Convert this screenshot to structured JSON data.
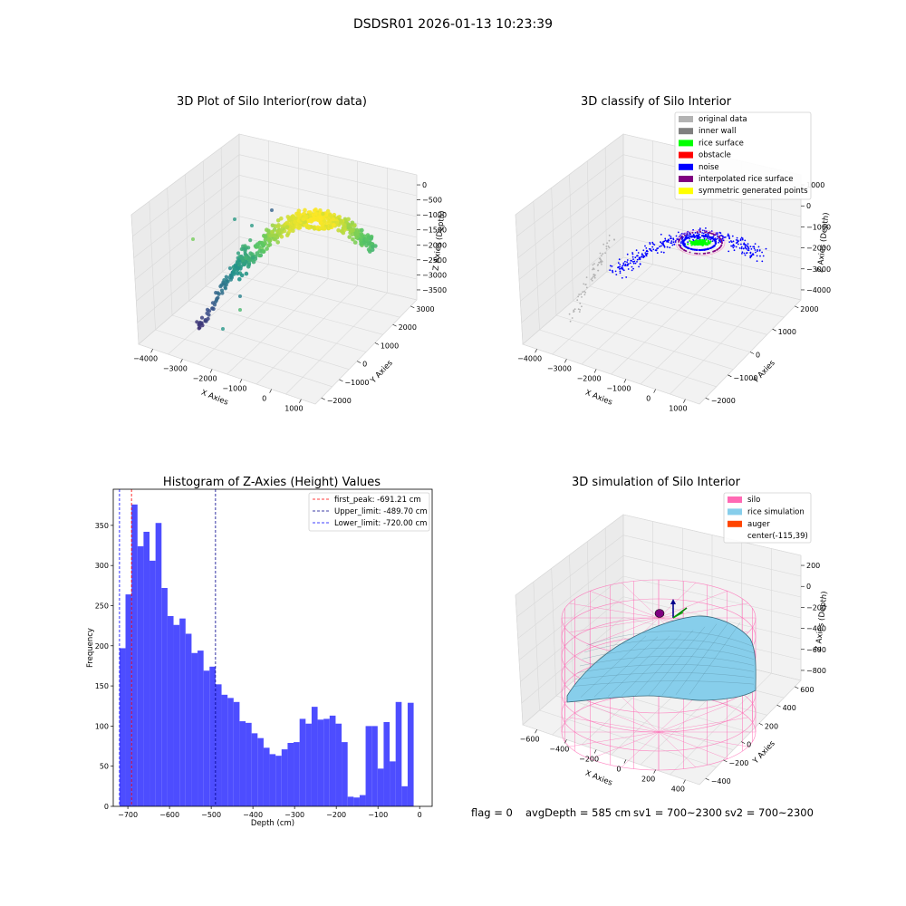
{
  "suptitle": "DSDSR01 2026-01-13 10:23:39",
  "status": {
    "flag": "flag = 0",
    "avg_depth": "avgDepth = 585 cm",
    "sv1": "sv1 = 700~2300",
    "sv2": "sv2 = 700~2300"
  },
  "chart_data": [
    {
      "type": "scatter",
      "projection": "3d",
      "title": "3D Plot of Silo Interior(row data)",
      "xlabel": "X Axies",
      "ylabel": "Y Axies",
      "zlabel": "Z Axies (Depth)",
      "x_ticks": [
        "−4000",
        "−3000",
        "−2000",
        "−1000",
        "0",
        "1000"
      ],
      "y_ticks": [
        "−2000",
        "−1000",
        "0",
        "1000",
        "2000",
        "3000"
      ],
      "z_ticks": [
        "0",
        "−500",
        "−1000",
        "−1500",
        "−2000",
        "−2500",
        "−3000",
        "−3500"
      ],
      "colormap": "viridis",
      "grid": true
    },
    {
      "type": "scatter",
      "projection": "3d",
      "title": "3D classify of Silo Interior",
      "xlabel": "X Axies",
      "ylabel": "Y Axies",
      "zlabel": "Z Axies (Depth)",
      "x_ticks": [
        "−4000",
        "−3000",
        "−2000",
        "−1000",
        "0",
        "1000"
      ],
      "y_ticks": [
        "−2000",
        "−1000",
        "0",
        "1000",
        "2000"
      ],
      "z_ticks": [
        "1000",
        "0",
        "−1000",
        "−2000",
        "−3000",
        "−4000"
      ],
      "legend_placement": "top-right",
      "legend": [
        {
          "label": "original data",
          "color": "#b3b3b3"
        },
        {
          "label": "inner wall",
          "color": "#808080"
        },
        {
          "label": "rice surface",
          "color": "#00ff00"
        },
        {
          "label": "obstacle",
          "color": "#ff0000"
        },
        {
          "label": "noise",
          "color": "#0000ff"
        },
        {
          "label": "interpolated rice surface",
          "color": "#800080"
        },
        {
          "label": "symmetric generated points",
          "color": "#ffff00"
        }
      ],
      "grid": true
    },
    {
      "type": "bar",
      "title": "Histogram of Z-Axies (Height) Values",
      "xlabel": "Depth (cm)",
      "ylabel": "Frequency",
      "xlim": [
        -735,
        30
      ],
      "ylim": [
        0,
        395
      ],
      "x_ticks": [
        -700,
        -600,
        -500,
        -400,
        -300,
        -200,
        -100,
        0
      ],
      "x_tick_labels": [
        "−700",
        "−600",
        "−500",
        "−400",
        "−300",
        "−200",
        "−100",
        "0"
      ],
      "y_ticks": [
        0,
        50,
        100,
        150,
        200,
        250,
        300,
        350
      ],
      "bin_start": -720,
      "bin_width": 14.4,
      "values": [
        197,
        264,
        376,
        324,
        342,
        306,
        353,
        272,
        237,
        226,
        234,
        215,
        191,
        194,
        169,
        174,
        152,
        139,
        135,
        130,
        106,
        104,
        91,
        85,
        73,
        65,
        63,
        71,
        79,
        80,
        109,
        103,
        124,
        108,
        109,
        113,
        103,
        80,
        12,
        11,
        14,
        100,
        100,
        47,
        105,
        56,
        130,
        25,
        129
      ],
      "bar_color": "#4d4dff",
      "lines": [
        {
          "label": "first_peak: -691.21 cm",
          "x": -691.21,
          "color": "#ff0000"
        },
        {
          "label": "Upper_limit: -489.70 cm",
          "x": -489.7,
          "color": "#00008b"
        },
        {
          "label": "Lower_limit: -720.00 cm",
          "x": -720.0,
          "color": "#0000ff"
        }
      ],
      "legend_placement": "top-right",
      "grid": false
    },
    {
      "type": "surface",
      "projection": "3d",
      "title": "3D simulation of Silo Interior",
      "xlabel": "X Axies",
      "ylabel": "Y Axies",
      "zlabel": "Z Axies (Depth)",
      "x_ticks": [
        "−600",
        "−400",
        "−200",
        "0",
        "200",
        "400"
      ],
      "y_ticks": [
        "−400",
        "−200",
        "0",
        "200",
        "400",
        "600"
      ],
      "z_ticks": [
        "200",
        "0",
        "−200",
        "−400",
        "−600",
        "−800"
      ],
      "legend_placement": "top-right",
      "legend": [
        {
          "label": "silo",
          "color": "#ff69b4"
        },
        {
          "label": "rice simulation",
          "color": "#87ceeb"
        },
        {
          "label": "auger",
          "color": "#ff4500"
        },
        {
          "label": "center(-115,39)",
          "color": ""
        }
      ],
      "grid": true
    }
  ]
}
